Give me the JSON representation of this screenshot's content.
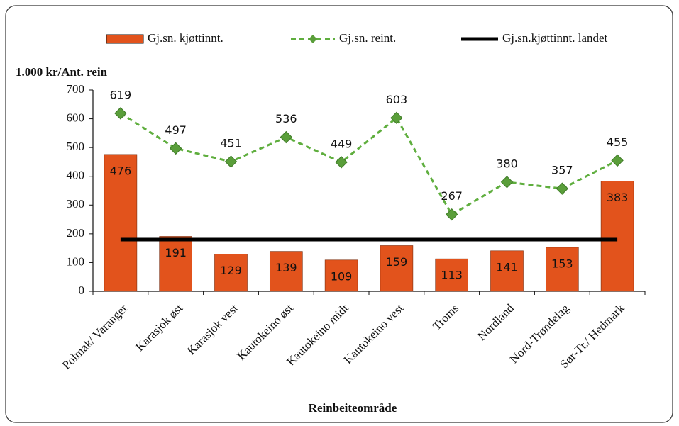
{
  "chart_data": {
    "type": "bar",
    "y_label": "1.000 kr/Ant. rein",
    "x_label": "Reinbeiteområde",
    "categories": [
      "Polmak/ Varanger",
      "Karasjok øst",
      "Karasjok vest",
      "Kautokeino øst",
      "Kautokeino midt",
      "Kautokeino vest",
      "Troms",
      "Nordland",
      "Nord-Trøndelag",
      "Sør-Tr./  Hedmark"
    ],
    "series": [
      {
        "name": "Gj.sn. kjøttinnt.",
        "type": "bar",
        "color": "#e2531c",
        "values": [
          476,
          191,
          129,
          139,
          109,
          159,
          113,
          141,
          153,
          383
        ]
      },
      {
        "name": "Gj.sn. reint.",
        "type": "line",
        "color": "#5fae3e",
        "values": [
          619,
          497,
          451,
          536,
          449,
          603,
          267,
          380,
          357,
          455
        ]
      },
      {
        "name": "Gj.sn.kjøttinnt. landet",
        "type": "hline",
        "color": "#000000",
        "values": [
          180,
          180,
          180,
          180,
          180,
          180,
          180,
          180,
          180,
          180
        ]
      }
    ],
    "ylim": [
      0,
      700
    ],
    "yticks": [
      0,
      100,
      200,
      300,
      400,
      500,
      600,
      700
    ]
  }
}
